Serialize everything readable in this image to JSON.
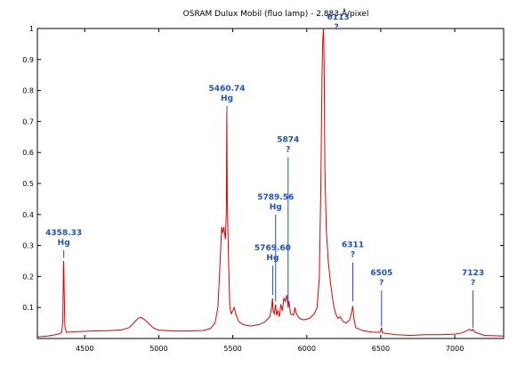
{
  "chart_data": {
    "type": "line",
    "title": "OSRAM Dulux Mobil (fluo lamp) - 2.883 Å/pixel",
    "xlabel": "",
    "ylabel": "",
    "xlim": [
      4180,
      7330
    ],
    "ylim": [
      0,
      1
    ],
    "grid": false,
    "x_ticks": [
      4500,
      5000,
      5500,
      6000,
      6500,
      7000
    ],
    "y_ticks": [
      0.1,
      0.2,
      0.3,
      0.4,
      0.5,
      0.6,
      0.7,
      0.8,
      0.9,
      1
    ],
    "y_tick_labels": [
      "0.1",
      "0.2",
      "0.3",
      "0.4",
      "0.5",
      "0.6",
      "0.7",
      "0.8",
      "0.9",
      "1"
    ],
    "line_color": "#e00000",
    "annotation_color": "#1e4fc8",
    "series": [
      {
        "points": [
          [
            4180,
            0.005
          ],
          [
            4250,
            0.008
          ],
          [
            4300,
            0.012
          ],
          [
            4330,
            0.015
          ],
          [
            4345,
            0.02
          ],
          [
            4352,
            0.06
          ],
          [
            4356,
            0.23
          ],
          [
            4358,
            0.25
          ],
          [
            4361,
            0.16
          ],
          [
            4366,
            0.04
          ],
          [
            4375,
            0.02
          ],
          [
            4450,
            0.022
          ],
          [
            4550,
            0.024
          ],
          [
            4650,
            0.025
          ],
          [
            4750,
            0.028
          ],
          [
            4800,
            0.035
          ],
          [
            4830,
            0.05
          ],
          [
            4860,
            0.065
          ],
          [
            4880,
            0.068
          ],
          [
            4900,
            0.062
          ],
          [
            4930,
            0.05
          ],
          [
            4960,
            0.035
          ],
          [
            5000,
            0.027
          ],
          [
            5100,
            0.024
          ],
          [
            5200,
            0.024
          ],
          [
            5300,
            0.026
          ],
          [
            5350,
            0.032
          ],
          [
            5380,
            0.05
          ],
          [
            5400,
            0.1
          ],
          [
            5415,
            0.25
          ],
          [
            5425,
            0.36
          ],
          [
            5432,
            0.34
          ],
          [
            5440,
            0.36
          ],
          [
            5450,
            0.32
          ],
          [
            5456,
            0.4
          ],
          [
            5460,
            0.73
          ],
          [
            5463,
            0.45
          ],
          [
            5470,
            0.28
          ],
          [
            5480,
            0.1
          ],
          [
            5490,
            0.08
          ],
          [
            5500,
            0.09
          ],
          [
            5510,
            0.1
          ],
          [
            5520,
            0.08
          ],
          [
            5540,
            0.055
          ],
          [
            5570,
            0.045
          ],
          [
            5620,
            0.04
          ],
          [
            5680,
            0.045
          ],
          [
            5720,
            0.055
          ],
          [
            5750,
            0.07
          ],
          [
            5762,
            0.1
          ],
          [
            5769,
            0.13
          ],
          [
            5772,
            0.09
          ],
          [
            5780,
            0.08
          ],
          [
            5786,
            0.1
          ],
          [
            5789,
            0.11
          ],
          [
            5795,
            0.075
          ],
          [
            5805,
            0.09
          ],
          [
            5815,
            0.07
          ],
          [
            5825,
            0.11
          ],
          [
            5835,
            0.09
          ],
          [
            5845,
            0.13
          ],
          [
            5855,
            0.12
          ],
          [
            5865,
            0.14
          ],
          [
            5874,
            0.1
          ],
          [
            5880,
            0.12
          ],
          [
            5890,
            0.08
          ],
          [
            5910,
            0.075
          ],
          [
            5920,
            0.1
          ],
          [
            5930,
            0.08
          ],
          [
            5950,
            0.065
          ],
          [
            5980,
            0.06
          ],
          [
            6020,
            0.065
          ],
          [
            6050,
            0.08
          ],
          [
            6070,
            0.1
          ],
          [
            6085,
            0.2
          ],
          [
            6095,
            0.5
          ],
          [
            6103,
            0.85
          ],
          [
            6108,
            0.96
          ],
          [
            6113,
            1.0
          ],
          [
            6117,
            0.9
          ],
          [
            6122,
            0.55
          ],
          [
            6132,
            0.35
          ],
          [
            6145,
            0.25
          ],
          [
            6160,
            0.18
          ],
          [
            6180,
            0.11
          ],
          [
            6195,
            0.08
          ],
          [
            6210,
            0.065
          ],
          [
            6225,
            0.07
          ],
          [
            6245,
            0.055
          ],
          [
            6265,
            0.05
          ],
          [
            6290,
            0.06
          ],
          [
            6305,
            0.09
          ],
          [
            6311,
            0.105
          ],
          [
            6318,
            0.065
          ],
          [
            6330,
            0.035
          ],
          [
            6380,
            0.025
          ],
          [
            6450,
            0.02
          ],
          [
            6495,
            0.02
          ],
          [
            6505,
            0.035
          ],
          [
            6512,
            0.018
          ],
          [
            6600,
            0.012
          ],
          [
            6700,
            0.01
          ],
          [
            6800,
            0.012
          ],
          [
            6900,
            0.012
          ],
          [
            7000,
            0.014
          ],
          [
            7050,
            0.018
          ],
          [
            7080,
            0.025
          ],
          [
            7100,
            0.03
          ],
          [
            7115,
            0.025
          ],
          [
            7123,
            0.03
          ],
          [
            7135,
            0.02
          ],
          [
            7200,
            0.01
          ],
          [
            7330,
            0.008
          ]
        ]
      }
    ],
    "annotations": [
      {
        "lines": [
          "4358.33",
          "Hg"
        ],
        "x": 4358.33,
        "line_top": 0.285,
        "line_bottom": 0.26
      },
      {
        "lines": [
          "5460.74",
          "Hg"
        ],
        "x": 5460.74,
        "line_top": 0.75,
        "line_bottom": 0.73
      },
      {
        "lines": [
          "5874",
          "?"
        ],
        "x": 5874,
        "line_top": 0.585,
        "line_bottom": 0.11
      },
      {
        "lines": [
          "5789.56",
          "Hg"
        ],
        "x": 5789.56,
        "line_top": 0.4,
        "line_bottom": 0.12
      },
      {
        "lines": [
          "5769.60",
          "Hg"
        ],
        "x": 5769.6,
        "line_top": 0.235,
        "line_bottom": 0.14
      },
      {
        "lines": [
          "6113",
          "?"
        ],
        "x": 6113,
        "line_top": 0.98,
        "line_bottom": 0.98
      },
      {
        "lines": [
          "6311",
          "?"
        ],
        "x": 6311,
        "line_top": 0.245,
        "line_bottom": 0.12
      },
      {
        "lines": [
          "6505",
          "?"
        ],
        "x": 6505,
        "line_top": 0.155,
        "line_bottom": 0.04
      },
      {
        "lines": [
          "7123",
          "?"
        ],
        "x": 7123,
        "line_top": 0.155,
        "line_bottom": 0.035
      }
    ]
  }
}
